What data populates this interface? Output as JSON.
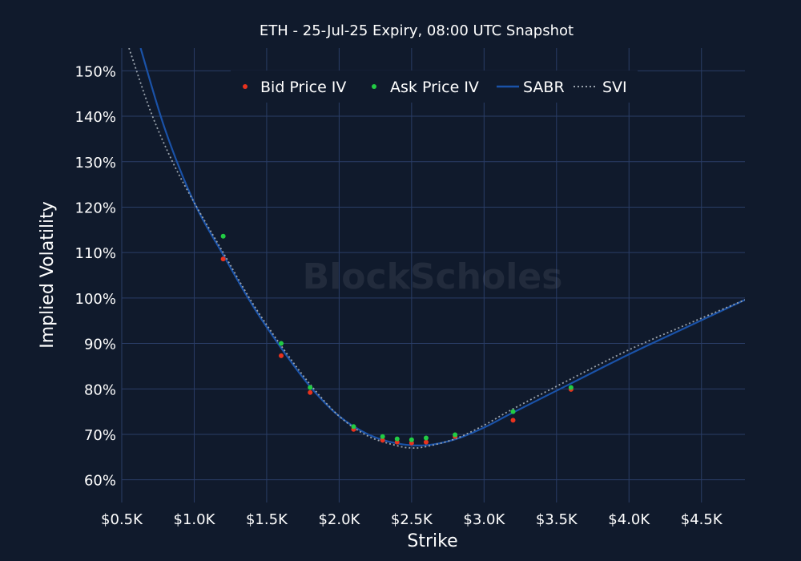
{
  "chart_data": {
    "type": "scatter",
    "title": "ETH - 25-Jul-25 Expiry, 08:00 UTC Snapshot",
    "xlabel": "Strike",
    "ylabel": "Implied Volatility",
    "xlim": [
      0.5,
      4.8
    ],
    "ylim": [
      55,
      155
    ],
    "x_unit": "K USD",
    "grid": true,
    "legend_placement": "top-center",
    "watermark": "BlockScholes",
    "x_ticks": [
      {
        "value": 0.5,
        "label": "$0.5K"
      },
      {
        "value": 1.0,
        "label": "$1.0K"
      },
      {
        "value": 1.5,
        "label": "$1.5K"
      },
      {
        "value": 2.0,
        "label": "$2.0K"
      },
      {
        "value": 2.5,
        "label": "$2.5K"
      },
      {
        "value": 3.0,
        "label": "$3.0K"
      },
      {
        "value": 3.5,
        "label": "$3.5K"
      },
      {
        "value": 4.0,
        "label": "$4.0K"
      },
      {
        "value": 4.5,
        "label": "$4.5K"
      }
    ],
    "y_ticks": [
      {
        "value": 60,
        "label": "60%"
      },
      {
        "value": 70,
        "label": "70%"
      },
      {
        "value": 80,
        "label": "80%"
      },
      {
        "value": 90,
        "label": "90%"
      },
      {
        "value": 100,
        "label": "100%"
      },
      {
        "value": 110,
        "label": "110%"
      },
      {
        "value": 120,
        "label": "120%"
      },
      {
        "value": 130,
        "label": "130%"
      },
      {
        "value": 140,
        "label": "140%"
      },
      {
        "value": 150,
        "label": "150%"
      }
    ],
    "series": [
      {
        "name": "Bid Price IV",
        "kind": "points",
        "color": "#e8321e",
        "x": [
          1.2,
          1.6,
          1.8,
          2.1,
          2.3,
          2.4,
          2.5,
          2.6,
          2.8,
          3.2,
          3.6
        ],
        "y": [
          108.6,
          87.3,
          79.2,
          71.1,
          68.7,
          68.3,
          68.1,
          68.3,
          69.5,
          73.1,
          79.9
        ]
      },
      {
        "name": "Ask Price IV",
        "kind": "points",
        "color": "#22cc44",
        "x": [
          1.2,
          1.6,
          1.8,
          2.1,
          2.3,
          2.4,
          2.5,
          2.6,
          2.8,
          3.2,
          3.6
        ],
        "y": [
          113.6,
          90.0,
          80.3,
          71.7,
          69.5,
          69.0,
          68.8,
          69.2,
          69.9,
          75.0,
          80.3
        ]
      },
      {
        "name": "SABR",
        "kind": "line",
        "color": "#1a52a8",
        "x": [
          0.63,
          0.8,
          1.0,
          1.2,
          1.4,
          1.6,
          1.8,
          2.0,
          2.2,
          2.4,
          2.6,
          2.8,
          3.0,
          3.2,
          3.6,
          4.0,
          4.4,
          4.8
        ],
        "y": [
          155,
          137,
          121,
          109.5,
          98.5,
          89,
          80.5,
          74,
          70,
          68,
          67.6,
          68.9,
          71.5,
          74.8,
          81.2,
          87.6,
          93.6,
          99.6
        ]
      },
      {
        "name": "SVI",
        "kind": "dotted",
        "color": "#9aa3ad",
        "x": [
          0.55,
          0.7,
          0.85,
          1.0,
          1.2,
          1.4,
          1.6,
          1.8,
          2.0,
          2.2,
          2.4,
          2.5,
          2.6,
          2.8,
          3.0,
          3.2,
          3.6,
          4.0,
          4.4,
          4.8
        ],
        "y": [
          155,
          141,
          130,
          121,
          110,
          99,
          89.5,
          81,
          74,
          69.6,
          67.5,
          67,
          67.3,
          69,
          72,
          75.6,
          82.2,
          88.6,
          94.2,
          99.6
        ]
      }
    ]
  }
}
